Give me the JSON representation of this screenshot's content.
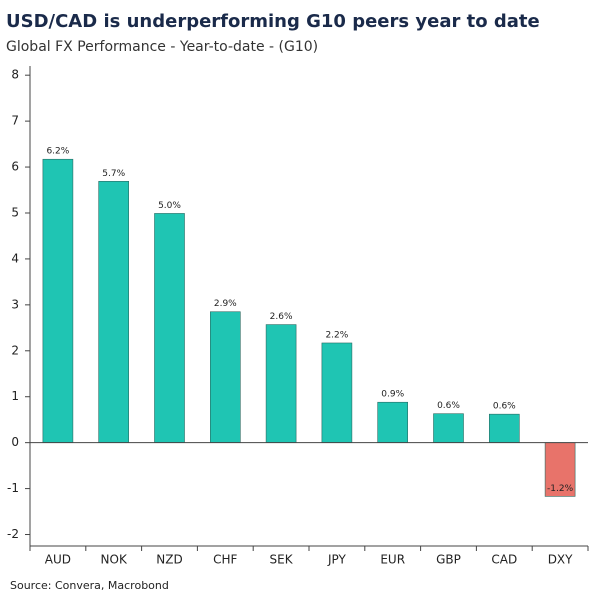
{
  "chart_data": {
    "type": "bar",
    "title": "USD/CAD is underperforming G10 peers year to date",
    "subtitle": "Global FX Performance - Year-to-date - (G10)",
    "source": "Source: Convera, Macrobond",
    "categories": [
      "AUD",
      "NOK",
      "NZD",
      "CHF",
      "SEK",
      "JPY",
      "EUR",
      "GBP",
      "CAD",
      "DXY"
    ],
    "values": [
      6.17,
      5.69,
      4.99,
      2.85,
      2.57,
      2.17,
      0.88,
      0.63,
      0.62,
      -1.17
    ],
    "value_labels": [
      "6.2%",
      "5.7%",
      "5.0%",
      "2.9%",
      "2.6%",
      "2.2%",
      "0.9%",
      "0.6%",
      "0.6%",
      "-1.2%"
    ],
    "colors": [
      "#1fc5b3",
      "#1fc5b3",
      "#1fc5b3",
      "#1fc5b3",
      "#1fc5b3",
      "#1fc5b3",
      "#1fc5b3",
      "#1fc5b3",
      "#1fc5b3",
      "#e8736a"
    ],
    "ylim": [
      -2.25,
      8.2
    ],
    "yticks": [
      -2,
      -1,
      0,
      1,
      2,
      3,
      4,
      5,
      6,
      7,
      8
    ],
    "grid": false
  }
}
